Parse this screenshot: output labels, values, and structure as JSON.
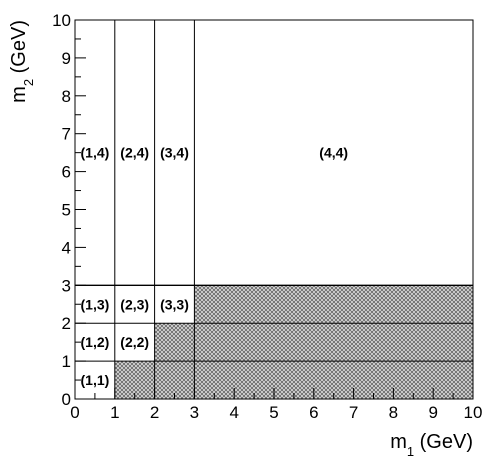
{
  "chart_data": {
    "type": "heatmap",
    "title": "",
    "xlabel": {
      "base": "m",
      "sub": "1",
      "unit": " (GeV)"
    },
    "ylabel": {
      "base": "m",
      "sub": "2",
      "unit": " (GeV)"
    },
    "xlim": [
      0,
      10
    ],
    "ylim": [
      0,
      10
    ],
    "xticks": [
      "0",
      "1",
      "2",
      "3",
      "4",
      "5",
      "6",
      "7",
      "8",
      "9",
      "10"
    ],
    "yticks": [
      "0",
      "1",
      "2",
      "3",
      "4",
      "5",
      "6",
      "7",
      "8",
      "9",
      "10"
    ],
    "grid": false,
    "x_boundaries": [
      1,
      2,
      3
    ],
    "y_boundaries": [
      1,
      2,
      3
    ],
    "hatched_regions": [
      {
        "x": [
          1,
          10
        ],
        "y": [
          0,
          1
        ]
      },
      {
        "x": [
          2,
          10
        ],
        "y": [
          1,
          2
        ]
      },
      {
        "x": [
          3,
          10
        ],
        "y": [
          2,
          3
        ]
      }
    ],
    "region_labels": [
      {
        "text": "(1,1)",
        "x": 0.5,
        "y": 0.5
      },
      {
        "text": "(1,2)",
        "x": 0.5,
        "y": 1.5
      },
      {
        "text": "(2,2)",
        "x": 1.5,
        "y": 1.5
      },
      {
        "text": "(1,3)",
        "x": 0.5,
        "y": 2.5
      },
      {
        "text": "(2,3)",
        "x": 1.5,
        "y": 2.5
      },
      {
        "text": "(3,3)",
        "x": 2.5,
        "y": 2.5
      },
      {
        "text": "(1,4)",
        "x": 0.5,
        "y": 6.5
      },
      {
        "text": "(2,4)",
        "x": 1.5,
        "y": 6.5
      },
      {
        "text": "(3,4)",
        "x": 2.5,
        "y": 6.5
      },
      {
        "text": "(4,4)",
        "x": 6.5,
        "y": 6.5
      }
    ],
    "colors": {
      "hatch_fill": "#d9d9d9",
      "hatch_line": "#555555",
      "frame": "#000000"
    }
  }
}
